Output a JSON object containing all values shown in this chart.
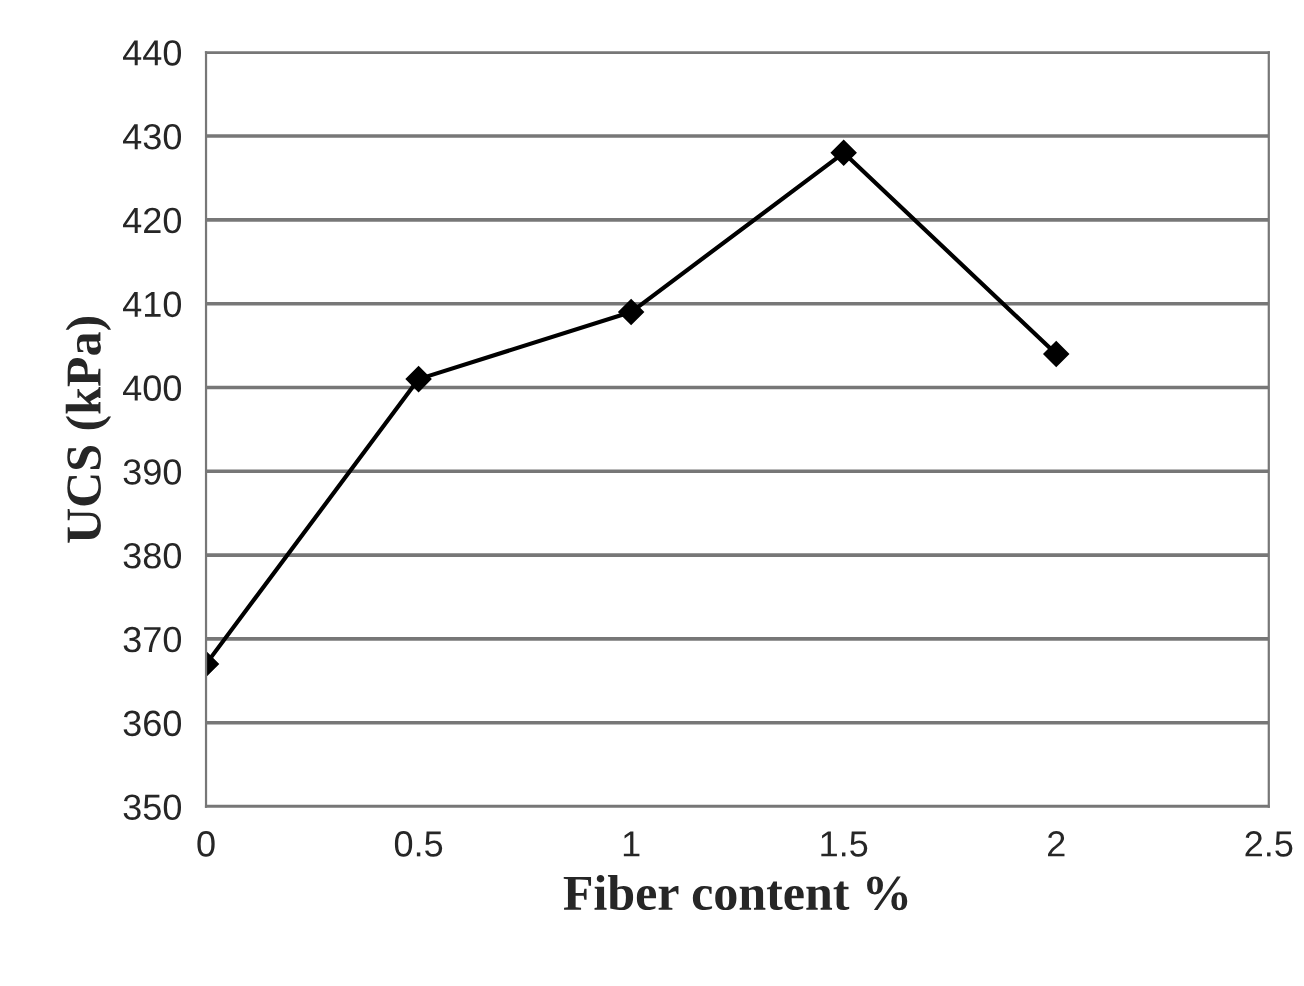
{
  "chart_data": {
    "type": "line",
    "xlabel": "Fiber content %",
    "ylabel": "UCS (kPa)",
    "x": [
      0,
      0.5,
      1,
      1.5,
      2
    ],
    "series": [
      {
        "color": "#000000",
        "values": [
          367,
          401,
          409,
          428,
          404
        ]
      }
    ],
    "xlim": [
      0,
      2.5
    ],
    "xticks": [
      0,
      0.5,
      1,
      1.5,
      2,
      2.5
    ],
    "ylim": [
      350,
      440
    ],
    "yticks": [
      350,
      360,
      370,
      380,
      390,
      400,
      410,
      420,
      430,
      440
    ],
    "grid": "y",
    "marker": "diamond",
    "line_style": "solid"
  }
}
